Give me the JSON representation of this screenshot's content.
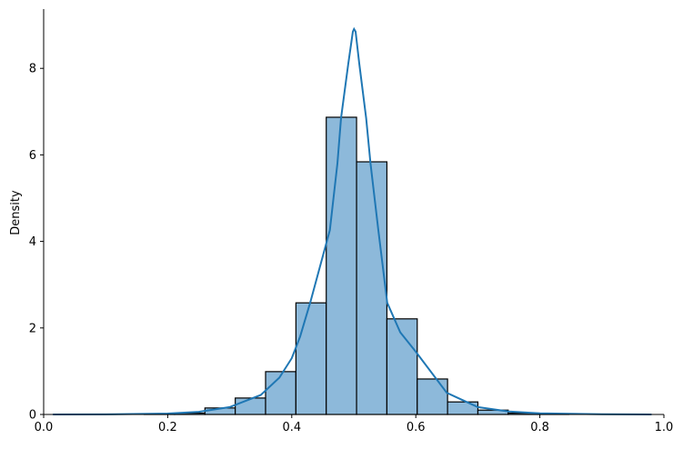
{
  "chart_data": {
    "type": "bar",
    "subtype": "histogram-with-kde",
    "title": "",
    "xlabel": "",
    "ylabel": "Density",
    "xlim": [
      0.0,
      1.0
    ],
    "ylim": [
      0,
      9.37
    ],
    "xticks": [
      "0.0",
      "0.2",
      "0.4",
      "0.6",
      "0.8",
      "1.0"
    ],
    "yticks": [
      "0",
      "2",
      "4",
      "6",
      "8"
    ],
    "grid": false,
    "bar_color": "#8db9da",
    "bar_edge_color": "#000000",
    "kde_color": "#1f77b4",
    "bins": {
      "edges": [
        0.0155,
        0.0644,
        0.1133,
        0.1622,
        0.2111,
        0.26,
        0.3089,
        0.3578,
        0.4067,
        0.4556,
        0.5045,
        0.5534,
        0.6023,
        0.6512,
        0.7001,
        0.749,
        0.7979,
        0.8468,
        0.8957,
        0.9446,
        0.9935
      ],
      "values": [
        0.0,
        0.0,
        0.0,
        0.005,
        0.03,
        0.15,
        0.38,
        0.99,
        2.58,
        6.87,
        5.84,
        2.21,
        0.82,
        0.29,
        0.1,
        0.03,
        0.005,
        0.0,
        0.0,
        0.0
      ]
    },
    "kde": {
      "x": [
        0.015,
        0.1,
        0.2,
        0.25,
        0.3,
        0.35,
        0.38,
        0.4,
        0.4135,
        0.43,
        0.4614,
        0.4736,
        0.4795,
        0.491,
        0.4985,
        0.5004,
        0.503,
        0.509,
        0.52,
        0.527,
        0.5396,
        0.554,
        0.575,
        0.6,
        0.65,
        0.7,
        0.75,
        0.8,
        0.9,
        0.98
      ],
      "y": [
        0.0,
        0.003,
        0.02,
        0.06,
        0.17,
        0.45,
        0.85,
        1.3,
        1.8,
        2.6,
        4.26,
        5.8,
        6.85,
        8.1,
        8.85,
        8.91,
        8.85,
        8.1,
        6.85,
        5.8,
        4.26,
        2.58,
        1.9,
        1.45,
        0.5,
        0.17,
        0.07,
        0.025,
        0.005,
        0.0
      ]
    }
  }
}
